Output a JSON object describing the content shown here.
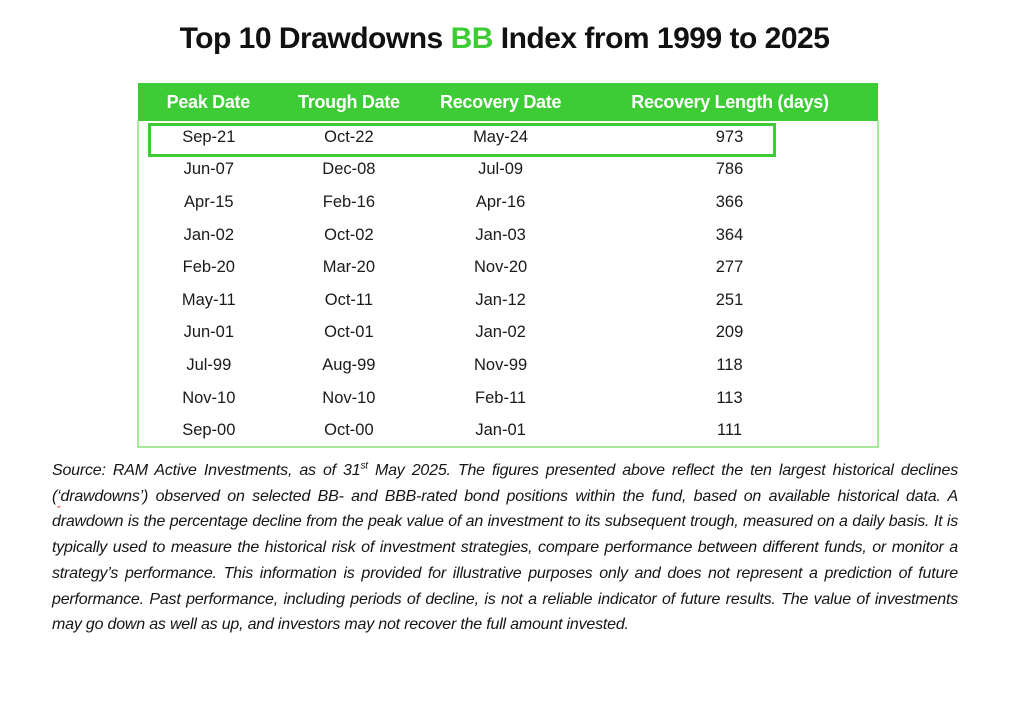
{
  "title": {
    "prefix": "Top 10 Drawdowns ",
    "highlight": "BB",
    "suffix": " Index from 1999 to 2025"
  },
  "colors": {
    "accent_green": "#3dcc35",
    "table_border_light_green": "#a8e89c",
    "header_text": "#ffffff",
    "body_text": "#1a1a1a",
    "spellcheck_red": "#e8483f"
  },
  "table": {
    "headers": [
      "Peak Date",
      "Trough Date",
      "Recovery Date",
      "Recovery Length (days)"
    ],
    "rows": [
      {
        "peak": "Sep-21",
        "trough": "Oct-22",
        "recovery": "May-24",
        "length": "973",
        "highlighted": true
      },
      {
        "peak": "Jun-07",
        "trough": "Dec-08",
        "recovery": "Jul-09",
        "length": "786",
        "highlighted": false
      },
      {
        "peak": "Apr-15",
        "trough": "Feb-16",
        "recovery": "Apr-16",
        "length": "366",
        "highlighted": false
      },
      {
        "peak": "Jan-02",
        "trough": "Oct-02",
        "recovery": "Jan-03",
        "length": "364",
        "highlighted": false
      },
      {
        "peak": "Feb-20",
        "trough": "Mar-20",
        "recovery": "Nov-20",
        "length": "277",
        "highlighted": false
      },
      {
        "peak": "May-11",
        "trough": "Oct-11",
        "recovery": "Jan-12",
        "length": "251",
        "highlighted": false
      },
      {
        "peak": "Jun-01",
        "trough": "Oct-01",
        "recovery": "Jan-02",
        "length": "209",
        "highlighted": false
      },
      {
        "peak": "Jul-99",
        "trough": "Aug-99",
        "recovery": "Nov-99",
        "length": "118",
        "highlighted": false
      },
      {
        "peak": "Nov-10",
        "trough": "Nov-10",
        "recovery": "Feb-11",
        "length": "113",
        "highlighted": false
      },
      {
        "peak": "Sep-00",
        "trough": "Oct-00",
        "recovery": "Jan-01",
        "length": "111",
        "highlighted": false
      }
    ]
  },
  "chart_data": {
    "type": "table",
    "title": "Top 10 Drawdowns BB Index from 1999 to 2025",
    "columns": [
      "Peak Date",
      "Trough Date",
      "Recovery Date",
      "Recovery Length (days)"
    ],
    "rows": [
      [
        "Sep-21",
        "Oct-22",
        "May-24",
        973
      ],
      [
        "Jun-07",
        "Dec-08",
        "Jul-09",
        786
      ],
      [
        "Apr-15",
        "Feb-16",
        "Apr-16",
        366
      ],
      [
        "Jan-02",
        "Oct-02",
        "Jan-03",
        364
      ],
      [
        "Feb-20",
        "Mar-20",
        "Nov-20",
        277
      ],
      [
        "May-11",
        "Oct-11",
        "Jan-12",
        251
      ],
      [
        "Jun-01",
        "Oct-01",
        "Jan-02",
        209
      ],
      [
        "Jul-99",
        "Aug-99",
        "Nov-99",
        118
      ],
      [
        "Nov-10",
        "Nov-10",
        "Feb-11",
        113
      ],
      [
        "Sep-00",
        "Oct-00",
        "Jan-01",
        111
      ]
    ],
    "highlighted_row_index": 0,
    "sort": "Recovery Length (days) descending"
  },
  "disclaimer": {
    "part1": "Source: RAM Active Investments, as of 31",
    "superscript": "st",
    "part2": " May 2025. The figures presented above reflect the ten largest historical declines (",
    "quote": "‘",
    "part3": "drawdowns’) observed on selected BB- and BBB-rated bond positions within the fund, based on available historical data. A drawdown is the percentage decline from the peak value of an investment to its subsequent trough, measured on a daily basis. It is typically used to measure the historical risk of investment strategies, compare performance between different funds, or monitor a strategy’s performance. This information is provided for illustrative purposes only and does not represent a prediction of future performance. Past performance, including periods of decline, is not a reliable indicator of future results. The value of investments may go down as well as up, and investors may not recover the full amount invested."
  }
}
